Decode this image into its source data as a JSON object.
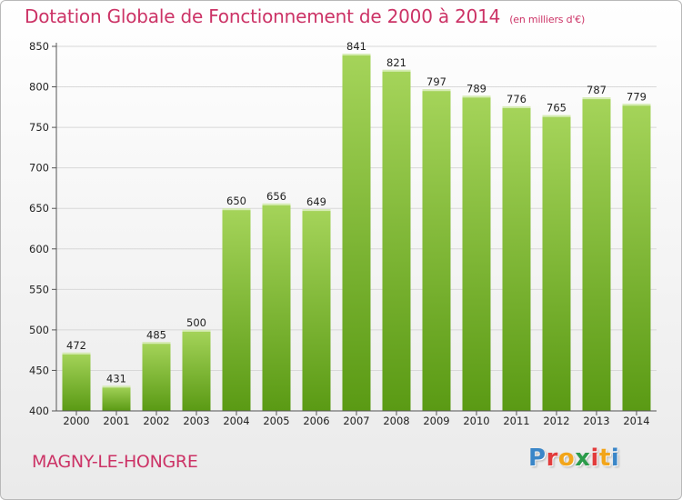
{
  "header": {
    "title": "Dotation Globale de Fonctionnement de 2000 à 2014",
    "unit": "(en milliers d'€)"
  },
  "footer": {
    "commune": "MAGNY-LE-HONGRE",
    "brand_letters": [
      "P",
      "r",
      "o",
      "x",
      "i",
      "t",
      "i"
    ],
    "brand_colors": [
      "#3a86c8",
      "#e23c3c",
      "#f2a51a",
      "#2b9b4a",
      "#e23c3c",
      "#f2a51a",
      "#3a86c8"
    ]
  },
  "colors": {
    "bar_light": "#a5d45a",
    "bar_dark": "#5a9a14",
    "title": "#cc3366",
    "grid": "#d8d8d8",
    "axis": "#555555"
  },
  "chart_data": {
    "type": "bar",
    "title": "Dotation Globale de Fonctionnement de 2000 à 2014",
    "xlabel": "",
    "ylabel": "",
    "categories": [
      "2000",
      "2001",
      "2002",
      "2003",
      "2004",
      "2005",
      "2006",
      "2007",
      "2008",
      "2009",
      "2010",
      "2011",
      "2012",
      "2013",
      "2014"
    ],
    "values": [
      472,
      431,
      485,
      500,
      650,
      656,
      649,
      841,
      821,
      797,
      789,
      776,
      765,
      787,
      779
    ],
    "data_labels": [
      "472",
      "431",
      "485",
      "500",
      "650",
      "656",
      "649",
      "841",
      "821",
      "797",
      "789",
      "776",
      "765",
      "787",
      "779"
    ],
    "ylim": [
      400,
      850
    ],
    "y_ticks": [
      400,
      450,
      500,
      550,
      600,
      650,
      700,
      750,
      800,
      850
    ],
    "y_tick_labels": [
      "400",
      "450",
      "500",
      "550",
      "600",
      "650",
      "700",
      "750",
      "800",
      "850"
    ],
    "grid": true,
    "legend": "none"
  }
}
